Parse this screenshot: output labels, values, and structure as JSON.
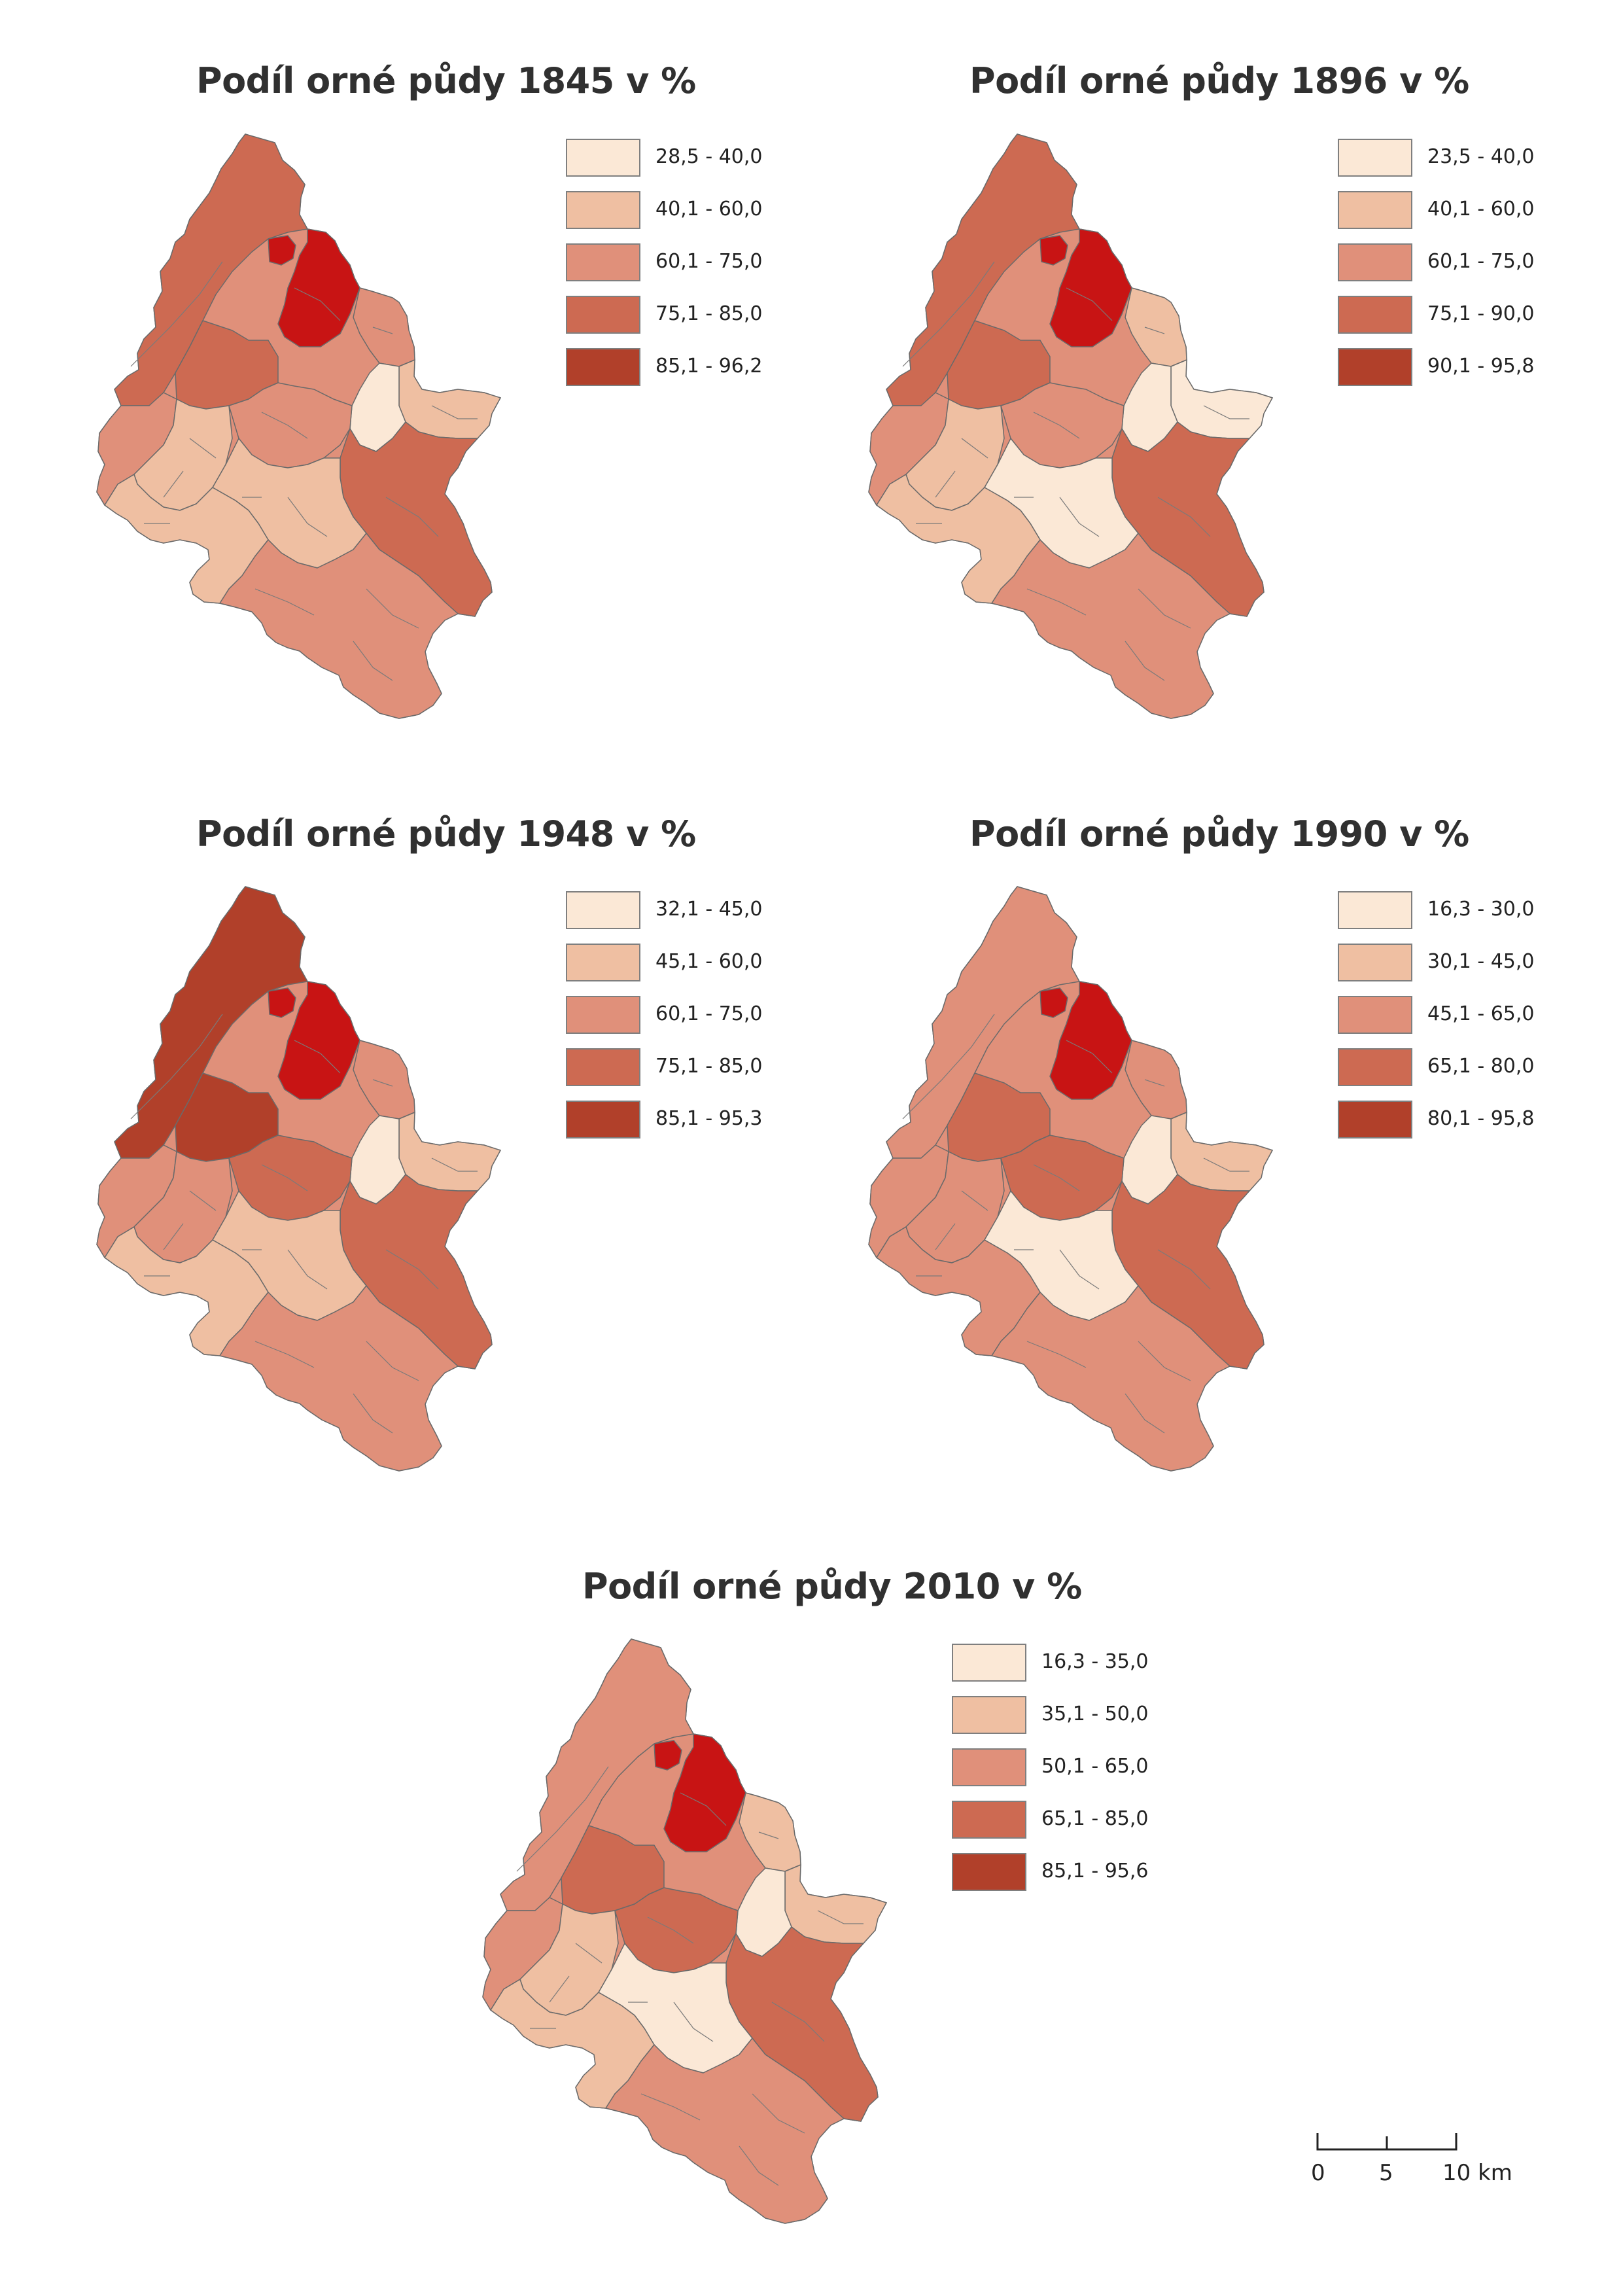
{
  "maps": [
    {
      "title": "Podíl orné půdy 1845 v %",
      "legend": [
        "28,5 - 40,0",
        "40,1 - 60,0",
        "60,1 - 75,0",
        "75,1 - 85,0",
        "85,1 - 96,2"
      ],
      "zone_classes": [
        3,
        4,
        4,
        2,
        3,
        1,
        0,
        2,
        1,
        2,
        3,
        1,
        1,
        2
      ]
    },
    {
      "title": "Podíl orné půdy 1896 v %",
      "legend": [
        "23,5 - 40,0",
        "40,1 - 60,0",
        "60,1 - 75,0",
        "75,1 - 90,0",
        "90,1 - 95,8"
      ],
      "zone_classes": [
        3,
        4,
        4,
        1,
        3,
        0,
        0,
        2,
        1,
        2,
        3,
        0,
        1,
        2
      ]
    },
    {
      "title": "Podíl orné půdy 1948 v %",
      "legend": [
        "32,1 - 45,0",
        "45,1 - 60,0",
        "60,1 - 75,0",
        "75,1 - 85,0",
        "85,1 - 95,3"
      ],
      "zone_classes": [
        4,
        4,
        4,
        2,
        4,
        1,
        0,
        2,
        2,
        3,
        3,
        1,
        1,
        2
      ]
    },
    {
      "title": "Podíl orné půdy 1990 v %",
      "legend": [
        "16,3 - 30,0",
        "30,1 - 45,0",
        "45,1 - 65,0",
        "65,1 - 80,0",
        "80,1 - 95,8"
      ],
      "zone_classes": [
        2,
        4,
        4,
        2,
        3,
        1,
        0,
        2,
        2,
        3,
        3,
        0,
        2,
        2
      ]
    },
    {
      "title": "Podíl orné půdy 2010 v %",
      "legend": [
        "16,3 - 35,0",
        "35,1 - 50,0",
        "50,1 - 65,0",
        "65,1 - 85,0",
        "85,1 - 95,6"
      ],
      "zone_classes": [
        2,
        4,
        4,
        1,
        3,
        1,
        0,
        2,
        1,
        3,
        3,
        0,
        1,
        2
      ]
    }
  ],
  "class_colors": [
    "#fbe8d6",
    "#efbfa2",
    "#e0907a",
    "#cd6a52",
    "#b1402a"
  ],
  "highlight_color": "#c81414",
  "scale_bar": {
    "labels": [
      "0",
      "5",
      "10 km"
    ]
  }
}
